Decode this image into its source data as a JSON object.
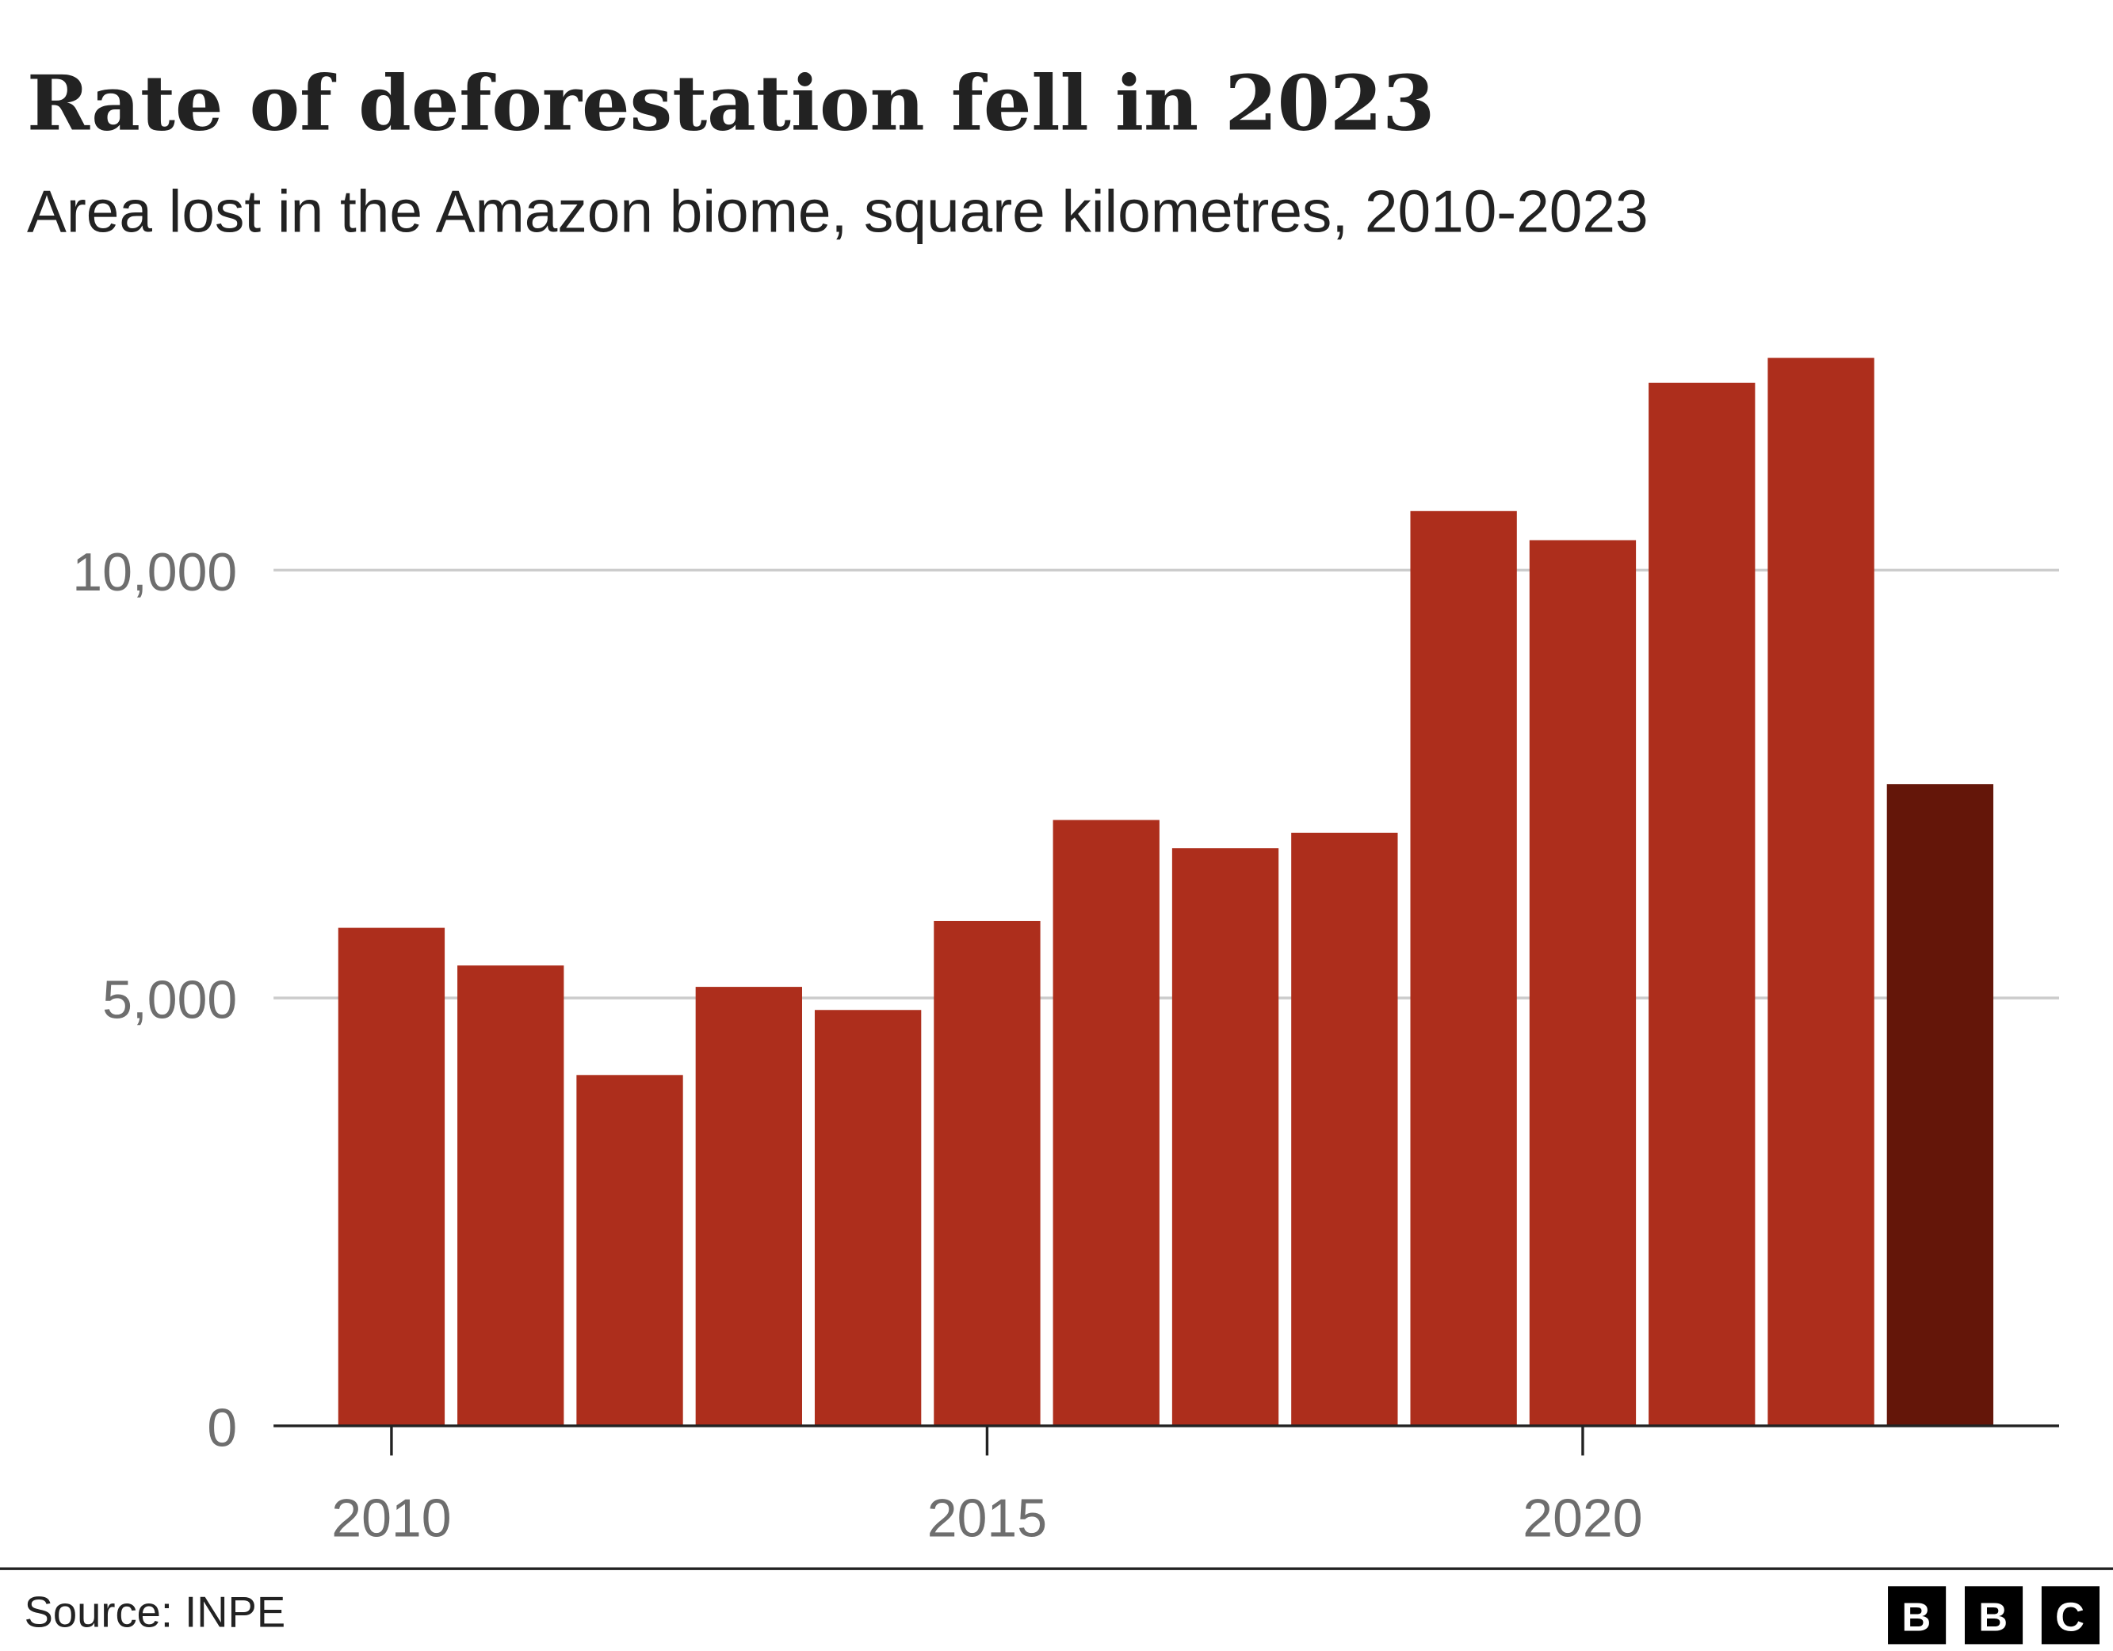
{
  "chart_data": {
    "type": "bar",
    "title": "Rate of deforestation fell in 2023",
    "subtitle": "Area lost in the Amazon biome, square kilometres, 2010-2023",
    "xlabel": "",
    "ylabel": "",
    "categories": [
      2010,
      2011,
      2012,
      2013,
      2014,
      2015,
      2016,
      2017,
      2018,
      2019,
      2020,
      2021,
      2022,
      2023
    ],
    "values": [
      5820,
      5380,
      4100,
      5130,
      4860,
      5900,
      7080,
      6750,
      6930,
      10690,
      10350,
      12190,
      12480,
      7500
    ],
    "highlight_category": 2023,
    "ylim": [
      0,
      13500
    ],
    "y_ticks": [
      {
        "value": 0,
        "label": "0"
      },
      {
        "value": 5000,
        "label": "5,000"
      },
      {
        "value": 10000,
        "label": "10,000"
      }
    ],
    "x_ticks": [
      {
        "value": 2010,
        "label": "2010"
      },
      {
        "value": 2015,
        "label": "2015"
      },
      {
        "value": 2020,
        "label": "2020"
      }
    ],
    "grid": "horizontal",
    "colors": {
      "bar": "#ad2e1c",
      "highlight": "#641609",
      "grid": "#cccccc",
      "axis": "#222222"
    }
  },
  "footer": {
    "source": "Source: INPE",
    "logo": [
      "B",
      "B",
      "C"
    ]
  }
}
